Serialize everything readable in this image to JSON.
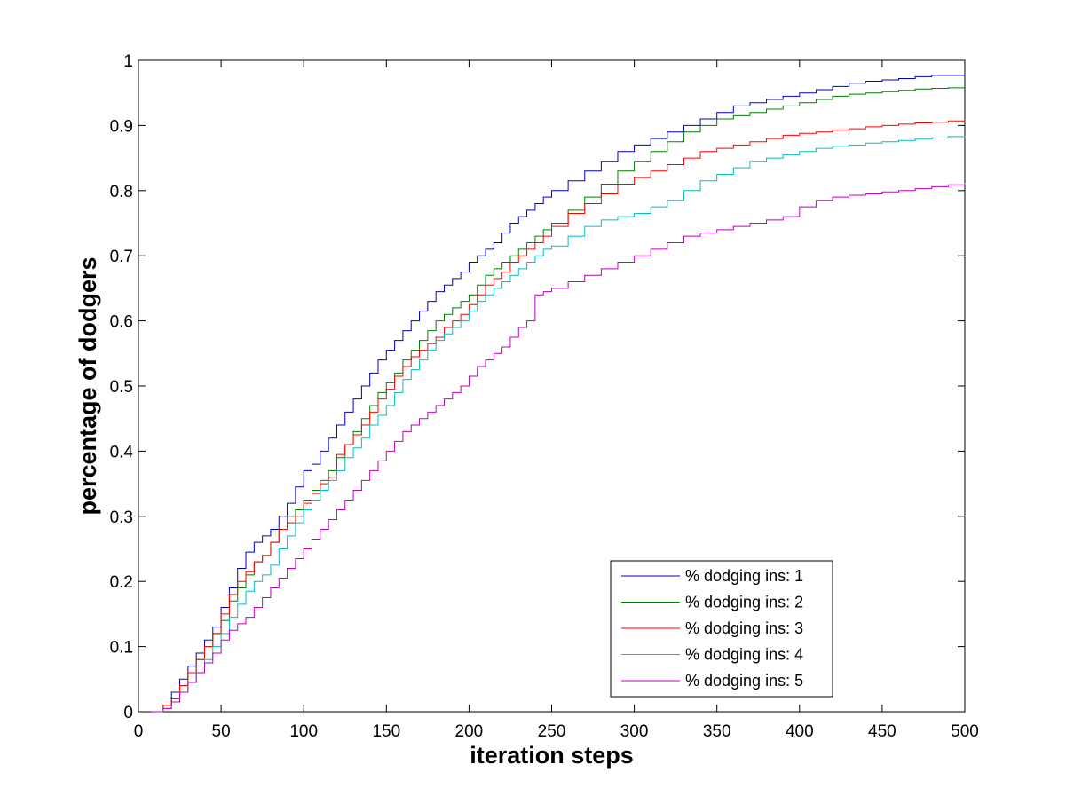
{
  "chart_data": {
    "type": "line",
    "title": "",
    "xlabel": "iteration steps",
    "ylabel": "percentage of dodgers",
    "xlim": [
      0,
      500
    ],
    "ylim": [
      0,
      1
    ],
    "xticks": [
      0,
      50,
      100,
      150,
      200,
      250,
      300,
      350,
      400,
      450,
      500
    ],
    "yticks": [
      0,
      0.1,
      0.2,
      0.3,
      0.4,
      0.5,
      0.6,
      0.7,
      0.8,
      0.9,
      1
    ],
    "xtick_labels": [
      "0",
      "50",
      "100",
      "150",
      "200",
      "250",
      "300",
      "350",
      "400",
      "450",
      "500"
    ],
    "ytick_labels": [
      "0",
      "0.1",
      "0.2",
      "0.3",
      "0.4",
      "0.5",
      "0.6",
      "0.7",
      "0.8",
      "0.9",
      "1"
    ],
    "grid": false,
    "legend_position": "bottom-right",
    "step": true,
    "series": [
      {
        "name": "% dodging ins: 1",
        "color": "#0000bf",
        "x": [
          8,
          15,
          20,
          25,
          30,
          35,
          40,
          45,
          50,
          55,
          60,
          65,
          70,
          75,
          80,
          85,
          90,
          95,
          100,
          105,
          110,
          115,
          120,
          125,
          130,
          135,
          140,
          145,
          150,
          155,
          160,
          165,
          170,
          175,
          180,
          185,
          190,
          195,
          200,
          205,
          210,
          215,
          220,
          225,
          230,
          235,
          240,
          245,
          250,
          260,
          270,
          280,
          290,
          300,
          310,
          320,
          330,
          340,
          350,
          360,
          370,
          380,
          390,
          400,
          410,
          420,
          430,
          440,
          450,
          460,
          470,
          480,
          490,
          500
        ],
        "y": [
          0.0,
          0.01,
          0.03,
          0.05,
          0.07,
          0.09,
          0.11,
          0.13,
          0.16,
          0.19,
          0.22,
          0.245,
          0.26,
          0.27,
          0.28,
          0.3,
          0.32,
          0.345,
          0.37,
          0.38,
          0.4,
          0.42,
          0.44,
          0.46,
          0.48,
          0.5,
          0.52,
          0.54,
          0.555,
          0.57,
          0.585,
          0.6,
          0.615,
          0.63,
          0.645,
          0.655,
          0.665,
          0.675,
          0.69,
          0.7,
          0.71,
          0.72,
          0.735,
          0.75,
          0.76,
          0.77,
          0.78,
          0.79,
          0.8,
          0.815,
          0.83,
          0.845,
          0.86,
          0.87,
          0.88,
          0.89,
          0.9,
          0.91,
          0.92,
          0.93,
          0.935,
          0.94,
          0.945,
          0.95,
          0.955,
          0.96,
          0.965,
          0.968,
          0.97,
          0.972,
          0.975,
          0.977,
          0.977,
          0.977
        ]
      },
      {
        "name": "% dodging ins: 2",
        "color": "#007f00",
        "x": [
          8,
          15,
          20,
          25,
          30,
          35,
          40,
          45,
          50,
          55,
          60,
          65,
          70,
          75,
          80,
          85,
          90,
          95,
          100,
          105,
          110,
          115,
          120,
          125,
          130,
          135,
          140,
          145,
          150,
          155,
          160,
          165,
          170,
          175,
          180,
          185,
          190,
          195,
          200,
          205,
          210,
          215,
          220,
          225,
          230,
          235,
          240,
          245,
          250,
          260,
          270,
          280,
          290,
          300,
          310,
          320,
          330,
          340,
          350,
          360,
          370,
          380,
          390,
          400,
          410,
          420,
          430,
          440,
          450,
          460,
          470,
          480,
          490,
          500
        ],
        "y": [
          0.0,
          0.01,
          0.02,
          0.04,
          0.06,
          0.08,
          0.1,
          0.12,
          0.14,
          0.17,
          0.19,
          0.21,
          0.23,
          0.24,
          0.26,
          0.28,
          0.3,
          0.31,
          0.325,
          0.34,
          0.355,
          0.37,
          0.39,
          0.41,
          0.43,
          0.45,
          0.47,
          0.49,
          0.505,
          0.52,
          0.54,
          0.555,
          0.57,
          0.585,
          0.6,
          0.61,
          0.62,
          0.63,
          0.64,
          0.655,
          0.67,
          0.68,
          0.69,
          0.7,
          0.71,
          0.72,
          0.73,
          0.74,
          0.75,
          0.77,
          0.79,
          0.81,
          0.83,
          0.845,
          0.86,
          0.875,
          0.89,
          0.9,
          0.91,
          0.915,
          0.92,
          0.925,
          0.93,
          0.935,
          0.94,
          0.945,
          0.948,
          0.95,
          0.952,
          0.954,
          0.956,
          0.957,
          0.958,
          0.958
        ]
      },
      {
        "name": "% dodging ins: 3",
        "color": "#ff0000",
        "x": [
          8,
          15,
          20,
          25,
          30,
          35,
          40,
          45,
          50,
          55,
          60,
          65,
          70,
          75,
          80,
          85,
          90,
          95,
          100,
          105,
          110,
          115,
          120,
          125,
          130,
          135,
          140,
          145,
          150,
          155,
          160,
          165,
          170,
          175,
          180,
          185,
          190,
          195,
          200,
          205,
          210,
          215,
          220,
          225,
          230,
          235,
          240,
          245,
          250,
          260,
          270,
          280,
          290,
          300,
          310,
          320,
          330,
          340,
          350,
          360,
          370,
          380,
          390,
          400,
          410,
          420,
          430,
          440,
          450,
          460,
          470,
          480,
          490,
          500
        ],
        "y": [
          0.0,
          0.01,
          0.02,
          0.04,
          0.06,
          0.08,
          0.1,
          0.12,
          0.15,
          0.18,
          0.2,
          0.215,
          0.23,
          0.24,
          0.26,
          0.28,
          0.29,
          0.3,
          0.32,
          0.335,
          0.35,
          0.36,
          0.395,
          0.41,
          0.425,
          0.44,
          0.46,
          0.48,
          0.495,
          0.515,
          0.53,
          0.545,
          0.555,
          0.565,
          0.575,
          0.59,
          0.6,
          0.61,
          0.625,
          0.64,
          0.655,
          0.665,
          0.675,
          0.69,
          0.7,
          0.71,
          0.72,
          0.73,
          0.745,
          0.765,
          0.78,
          0.795,
          0.81,
          0.82,
          0.83,
          0.84,
          0.85,
          0.86,
          0.865,
          0.87,
          0.875,
          0.88,
          0.885,
          0.888,
          0.89,
          0.893,
          0.895,
          0.898,
          0.9,
          0.902,
          0.904,
          0.905,
          0.907,
          0.908
        ]
      },
      {
        "name": "% dodging ins: 4",
        "color": "#00bfbf",
        "x": [
          8,
          15,
          20,
          25,
          30,
          35,
          40,
          45,
          50,
          55,
          60,
          65,
          70,
          75,
          80,
          85,
          90,
          95,
          100,
          105,
          110,
          115,
          120,
          125,
          130,
          135,
          140,
          145,
          150,
          155,
          160,
          165,
          170,
          175,
          180,
          185,
          190,
          195,
          200,
          205,
          210,
          215,
          220,
          225,
          230,
          235,
          240,
          245,
          250,
          260,
          270,
          280,
          290,
          300,
          310,
          320,
          330,
          340,
          350,
          360,
          370,
          380,
          390,
          400,
          410,
          420,
          430,
          440,
          450,
          460,
          470,
          480,
          490,
          500
        ],
        "y": [
          0.0,
          0.005,
          0.015,
          0.03,
          0.045,
          0.06,
          0.08,
          0.1,
          0.12,
          0.145,
          0.165,
          0.185,
          0.2,
          0.21,
          0.225,
          0.25,
          0.27,
          0.29,
          0.31,
          0.325,
          0.34,
          0.355,
          0.37,
          0.39,
          0.405,
          0.42,
          0.44,
          0.455,
          0.47,
          0.49,
          0.51,
          0.525,
          0.54,
          0.555,
          0.57,
          0.58,
          0.59,
          0.6,
          0.615,
          0.63,
          0.64,
          0.65,
          0.66,
          0.67,
          0.68,
          0.69,
          0.7,
          0.71,
          0.715,
          0.73,
          0.745,
          0.755,
          0.76,
          0.765,
          0.775,
          0.785,
          0.8,
          0.815,
          0.825,
          0.835,
          0.845,
          0.85,
          0.855,
          0.86,
          0.865,
          0.868,
          0.87,
          0.873,
          0.875,
          0.877,
          0.879,
          0.881,
          0.883,
          0.884
        ]
      },
      {
        "name": "% dodging ins: 5",
        "color": "#bf00bf",
        "x": [
          8,
          15,
          20,
          25,
          30,
          35,
          40,
          45,
          50,
          55,
          60,
          65,
          70,
          75,
          80,
          85,
          90,
          95,
          100,
          105,
          110,
          115,
          120,
          125,
          130,
          135,
          140,
          145,
          150,
          155,
          160,
          165,
          170,
          175,
          180,
          185,
          190,
          195,
          200,
          205,
          210,
          215,
          220,
          225,
          230,
          235,
          240,
          245,
          250,
          260,
          270,
          280,
          290,
          300,
          310,
          320,
          330,
          340,
          350,
          360,
          370,
          380,
          390,
          400,
          410,
          420,
          430,
          440,
          450,
          460,
          470,
          480,
          490,
          500
        ],
        "y": [
          0.0,
          0.005,
          0.015,
          0.03,
          0.045,
          0.06,
          0.075,
          0.09,
          0.11,
          0.125,
          0.135,
          0.145,
          0.16,
          0.175,
          0.19,
          0.205,
          0.22,
          0.235,
          0.25,
          0.265,
          0.28,
          0.295,
          0.31,
          0.325,
          0.34,
          0.355,
          0.37,
          0.385,
          0.4,
          0.415,
          0.43,
          0.44,
          0.45,
          0.46,
          0.47,
          0.48,
          0.49,
          0.5,
          0.515,
          0.53,
          0.54,
          0.55,
          0.56,
          0.575,
          0.59,
          0.6,
          0.64,
          0.645,
          0.65,
          0.66,
          0.67,
          0.68,
          0.69,
          0.7,
          0.71,
          0.72,
          0.73,
          0.735,
          0.74,
          0.745,
          0.75,
          0.755,
          0.76,
          0.775,
          0.785,
          0.79,
          0.793,
          0.795,
          0.798,
          0.8,
          0.803,
          0.806,
          0.809,
          0.812
        ]
      }
    ]
  }
}
